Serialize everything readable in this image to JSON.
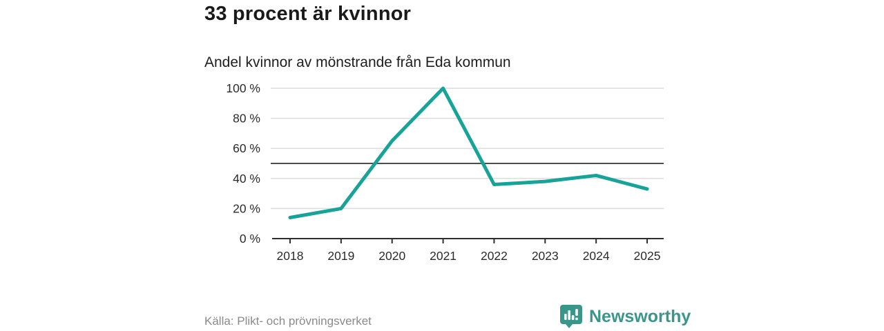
{
  "header": {
    "title": "33 procent är kvinnor",
    "subtitle": "Andel kvinnor av mönstrande från Eda kommun"
  },
  "footer": {
    "source": "Källa: Plikt- och prövningsverket",
    "brand_name": "Newsworthy",
    "brand_icon": "bar-chart-speech-bubble"
  },
  "colors": {
    "line": "#17A398",
    "brand_teal": "#3A958A",
    "gridline": "#dcdcdc",
    "benchmark_line": "#4d4d4d",
    "axis": "#2e2e2e",
    "tick_label": "#2b2b2b",
    "source_text": "#8a8a8a"
  },
  "chart_data": {
    "type": "line",
    "title": "33 procent är kvinnor",
    "subtitle": "Andel kvinnor av mönstrande från Eda kommun",
    "categories": [
      "2018",
      "2019",
      "2020",
      "2021",
      "2022",
      "2023",
      "2024",
      "2025"
    ],
    "values": [
      14,
      20,
      65,
      100,
      36,
      38,
      42,
      33
    ],
    "series_name": "Andel kvinnor (%)",
    "xlabel": "",
    "ylabel": "",
    "ylim": [
      0,
      100
    ],
    "ytick_values": [
      0,
      20,
      40,
      60,
      80,
      100
    ],
    "ytick_labels": [
      "0 %",
      "20 %",
      "40 %",
      "60 %",
      "80 %",
      "100 %"
    ],
    "benchmark_value": 50,
    "grid": true,
    "legend": false
  }
}
